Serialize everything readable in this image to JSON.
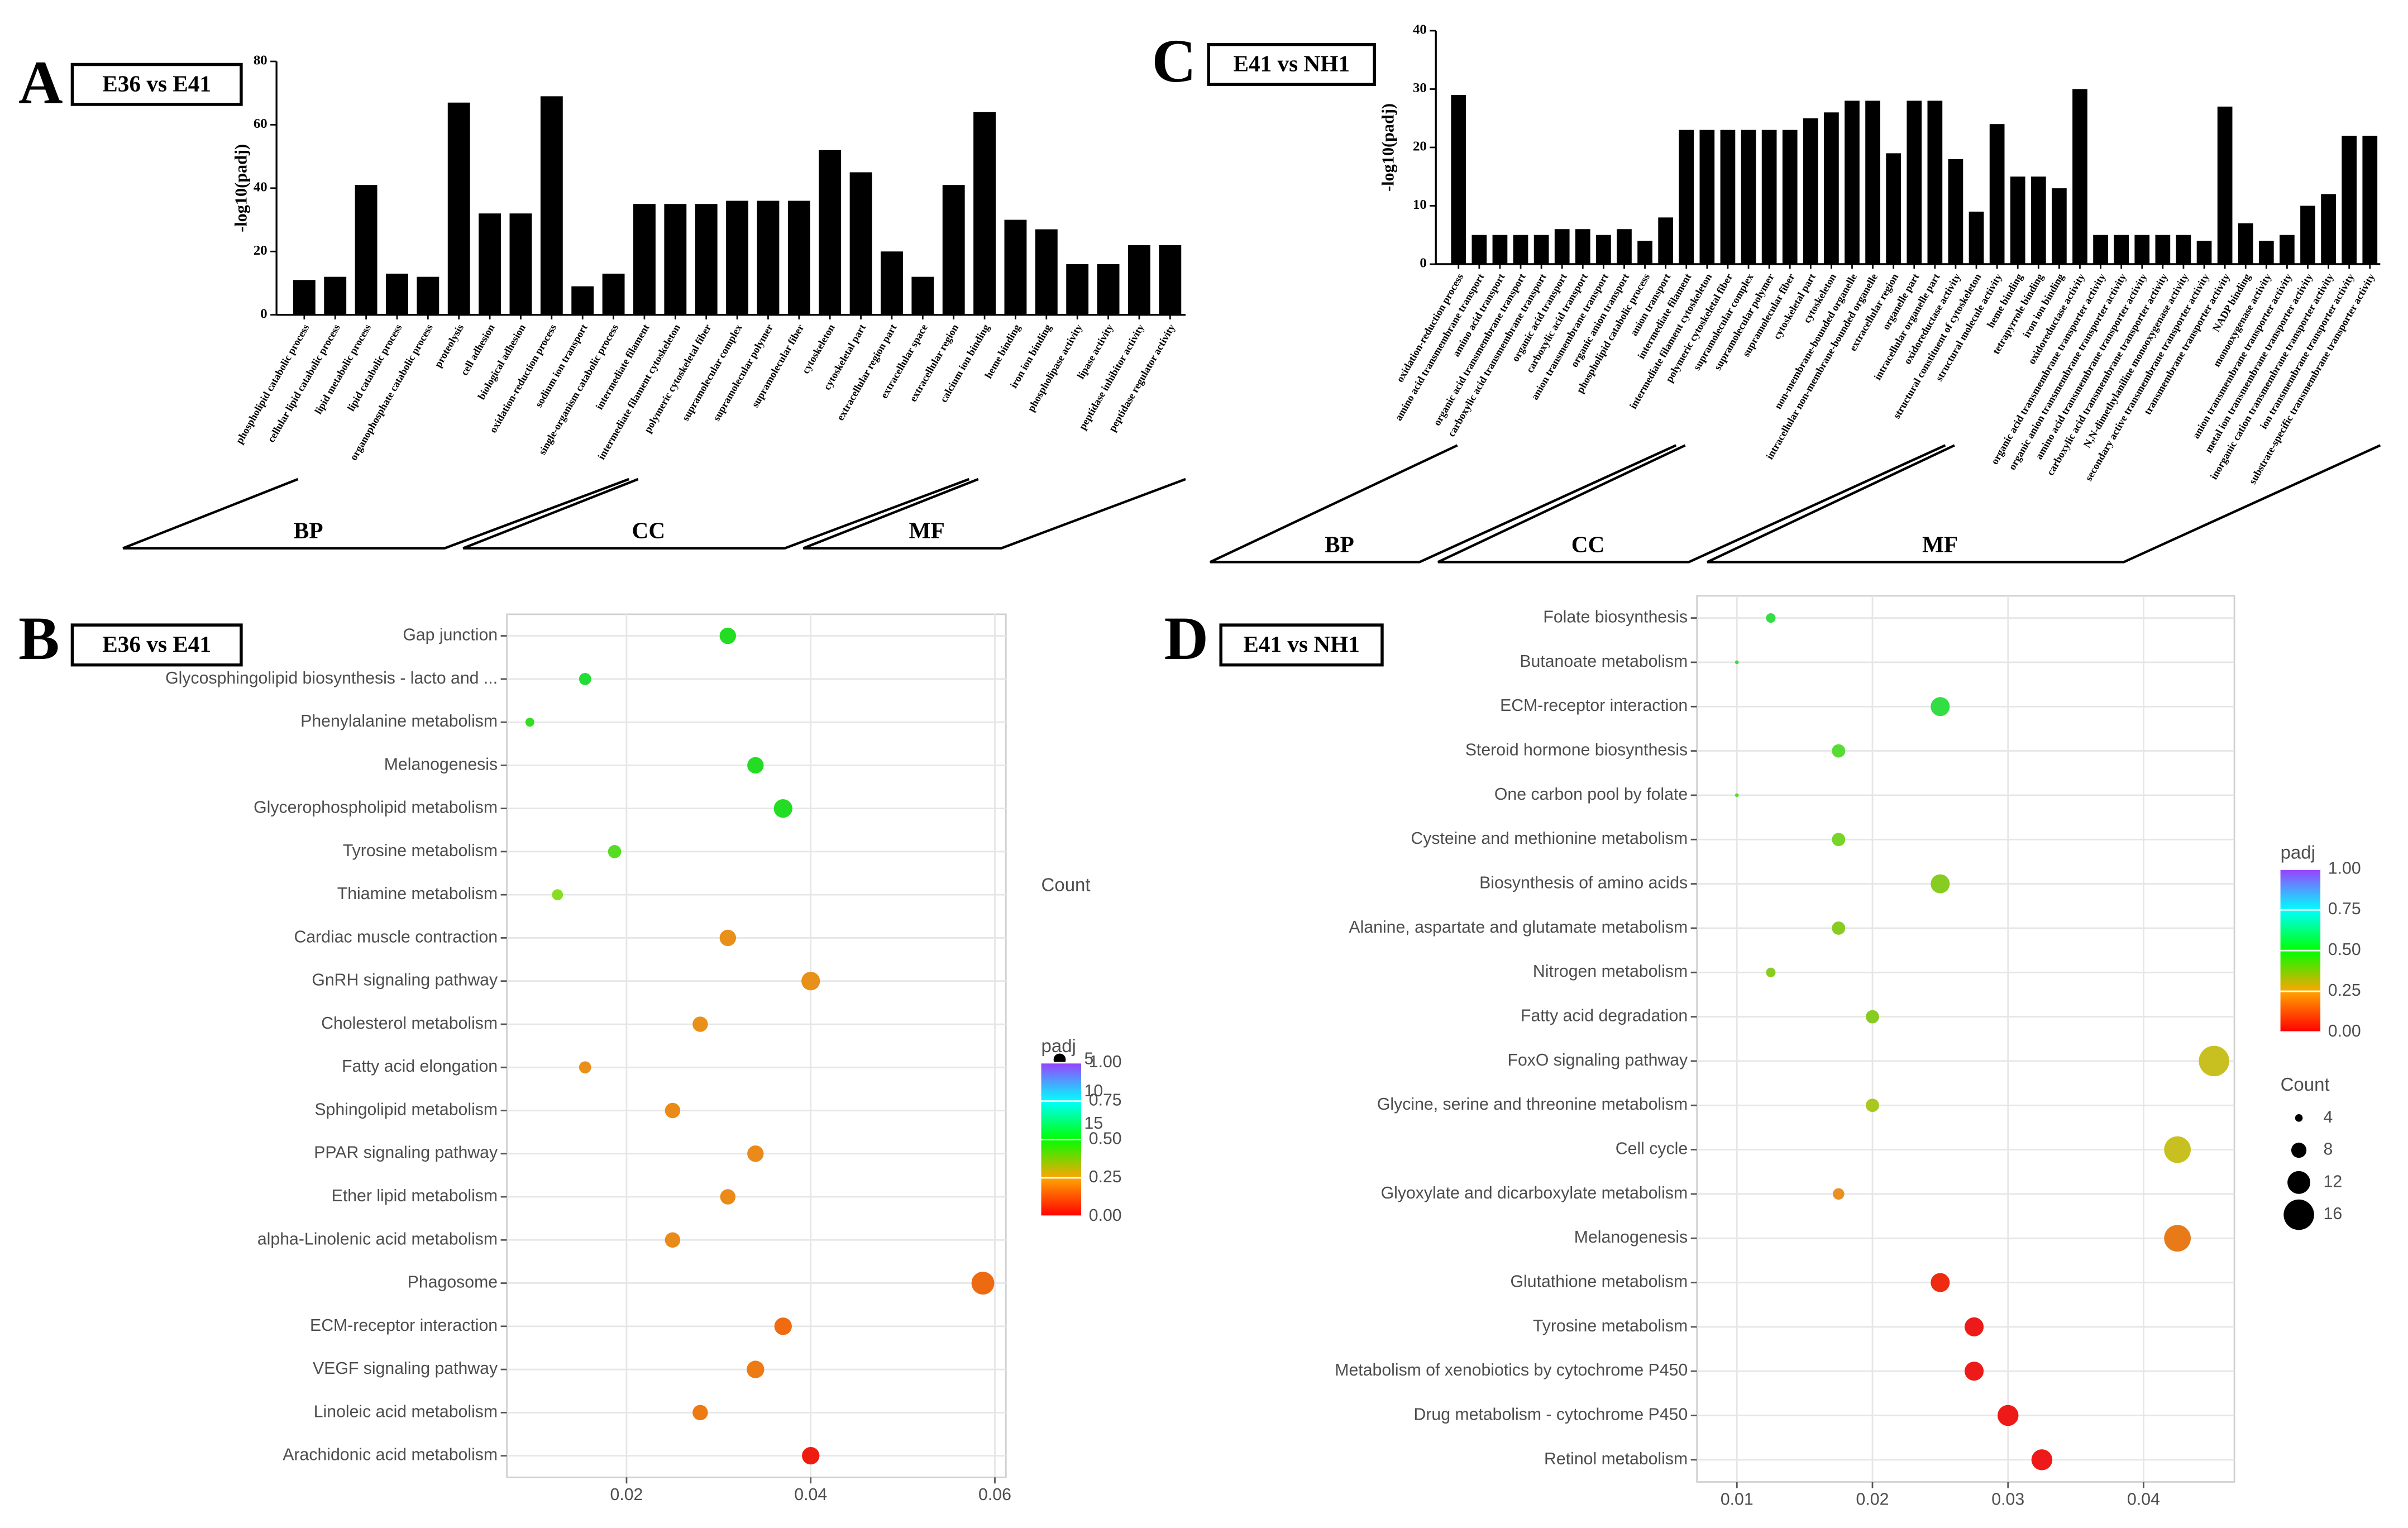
{
  "chart_data": [
    {
      "type": "bar",
      "panel": "A",
      "title": "E36 vs E41",
      "ylabel": "-log10(padj)",
      "ylim": [
        0,
        80
      ],
      "yticks": [
        0,
        20,
        40,
        60,
        80
      ],
      "color": "#000000",
      "groups": [
        {
          "name": "BP",
          "categories": [
            "phospholipid catabolic process",
            "cellular lipid catabolic process",
            "lipid metabolic process",
            "lipid catabolic process",
            "organophosphate catabolic process",
            "proteolysis",
            "cell adhesion",
            "biological adhesion",
            "oxidation-reduction process",
            "sodium ion transport",
            "single-organism catabolic process"
          ],
          "values": [
            11,
            12,
            41,
            13,
            12,
            67,
            32,
            32,
            69,
            9,
            13
          ]
        },
        {
          "name": "CC",
          "categories": [
            "intermediate filament",
            "intermediate filament cytoskeleton",
            "polymeric cytoskeletal fiber",
            "supramolecular complex",
            "supramolecular polymer",
            "supramolecular fiber",
            "cytoskeleton",
            "cytoskeletal part",
            "extracellular region part",
            "extracellular space",
            "extracellular region"
          ],
          "values": [
            35,
            35,
            35,
            36,
            36,
            36,
            52,
            45,
            20,
            12,
            41
          ]
        },
        {
          "name": "MF",
          "categories": [
            "calcium ion binding",
            "heme binding",
            "iron ion binding",
            "phospholipase activity",
            "lipase activity",
            "peptidase inhibitor activity",
            "peptidase regulator activity"
          ],
          "values": [
            64,
            30,
            27,
            16,
            16,
            22,
            22
          ]
        }
      ]
    },
    {
      "type": "bubble",
      "panel": "B",
      "title": "E36 vs E41",
      "xlim": [
        0.007,
        0.0612
      ],
      "xticks": [
        0.02,
        0.04,
        0.06
      ],
      "categories": [
        "Gap junction",
        "Glycosphingolipid biosynthesis - lacto and ...",
        "Phenylalanine metabolism",
        "Melanogenesis",
        "Glycerophospholipid metabolism",
        "Tyrosine metabolism",
        "Thiamine metabolism",
        "Cardiac muscle contraction",
        "GnRH signaling pathway",
        "Cholesterol metabolism",
        "Fatty acid elongation",
        "Sphingolipid metabolism",
        "PPAR signaling pathway",
        "Ether lipid metabolism",
        "alpha-Linolenic acid metabolism",
        "Phagosome",
        "ECM-receptor interaction",
        "VEGF signaling pathway",
        "Linoleic acid metabolism",
        "Arachidonic acid metabolism"
      ],
      "x": [
        0.031,
        0.0155,
        0.0095,
        0.034,
        0.037,
        0.0187,
        0.0125,
        0.031,
        0.04,
        0.028,
        0.0155,
        0.025,
        0.034,
        0.031,
        0.025,
        0.0587,
        0.037,
        0.034,
        0.028,
        0.04
      ],
      "sizes": [
        9,
        5,
        2,
        9,
        11,
        6,
        4,
        9,
        11,
        8,
        5,
        8,
        9,
        8,
        8,
        15,
        10,
        10,
        8,
        10
      ],
      "colors": [
        "#22dd22",
        "#22dd33",
        "#33dd22",
        "#22dd22",
        "#22dd22",
        "#55dd22",
        "#88dd22",
        "#e8901a",
        "#e8901a",
        "#e8901a",
        "#e8901a",
        "#ea8a18",
        "#ea8a18",
        "#ea8a18",
        "#ea8a18",
        "#ee6a10",
        "#f06a10",
        "#ee7a14",
        "#ee7a14",
        "#ee1c10"
      ],
      "size_legend": {
        "title": "Count",
        "values": [
          5,
          10,
          15
        ]
      },
      "colorbar": {
        "title": "padj",
        "ticks": [
          {
            "value": 0,
            "label": "0.00"
          },
          0.25,
          {
            "value": 0.5,
            "label": "0.50"
          },
          0.75,
          {
            "value": 1,
            "label": "1.00"
          }
        ],
        "colors": [
          "#ff0000",
          "#ffa500",
          "#00ff00",
          "#00ffff",
          "#9a40ff"
        ]
      }
    },
    {
      "type": "bar",
      "panel": "C",
      "title": "E41 vs NH1",
      "ylabel": "-log10(padj)",
      "ylim": [
        0,
        40
      ],
      "yticks": [
        0,
        10,
        20,
        30,
        40
      ],
      "color": "#000000",
      "groups": [
        {
          "name": "BP",
          "categories": [
            "oxidation-reduction process",
            "amino acid transmembrane transport",
            "amino acid transport",
            "organic acid transmembrane transport",
            "carboxylic acid transmembrane transport",
            "organic acid transport",
            "carboxylic acid transport",
            "anion transmembrane transport",
            "organic anion transport",
            "phospholipid catabolic process",
            "anion transport"
          ],
          "values": [
            29,
            5,
            5,
            5,
            5,
            6,
            6,
            5,
            6,
            4,
            8
          ]
        },
        {
          "name": "CC",
          "categories": [
            "intermediate filament",
            "intermediate filament cytoskeleton",
            "polymeric cytoskeletal fiber",
            "supramolecular complex",
            "supramolecular polymer",
            "supramolecular fiber",
            "cytoskeletal part",
            "cytoskeleton",
            "non-membrane-bounded organelle",
            "intracellular non-membrane-bounded organelle",
            "extracellular region",
            "organelle part",
            "intracellular organelle part"
          ],
          "values": [
            23,
            23,
            23,
            23,
            23,
            23,
            25,
            26,
            28,
            28,
            19,
            28,
            28
          ]
        },
        {
          "name": "MF",
          "categories": [
            "oxidoreductase activity",
            "structural constituent of cytoskeleton",
            "structural molecule activity",
            "heme binding",
            "tetrapyrrole binding",
            "iron ion binding",
            "oxidoreductase activity",
            "organic acid transmembrane transporter activity",
            "organic anion transmembrane transporter activity",
            "amino acid transmembrane transporter activity",
            "carboxylic acid transmembrane transporter activity",
            "N,N-dimethylaniline monooxygenase activity",
            "secondary active transmembrane transporter activity",
            "transmembrane transporter activity",
            "NADP binding",
            "monooxygenase activity",
            "anion transmembrane transporter activity",
            "metal ion transmembrane transporter activity",
            "inorganic cation transmembrane transporter activity",
            "ion transmembrane transporter activity",
            "substrate-specific transmembrane transporter activity"
          ],
          "values": [
            18,
            9,
            24,
            15,
            15,
            13,
            30,
            5,
            5,
            5,
            5,
            5,
            4,
            27,
            7,
            4,
            5,
            10,
            12,
            22,
            22
          ]
        }
      ]
    },
    {
      "type": "bubble",
      "panel": "D",
      "title": "E41 vs NH1",
      "xlim": [
        0.00705,
        0.0467
      ],
      "xticks": [
        0.01,
        0.02,
        0.03,
        0.04
      ],
      "categories": [
        "Folate biosynthesis",
        "Butanoate metabolism",
        "ECM-receptor interaction",
        "Steroid hormone biosynthesis",
        "One carbon pool by folate",
        "Cysteine and methionine metabolism",
        "Biosynthesis of amino acids",
        "Alanine, aspartate and glutamate metabolism",
        "Nitrogen metabolism",
        "Fatty acid degradation",
        "FoxO signaling pathway",
        "Glycine, serine and threonine metabolism",
        "Cell cycle",
        "Glyoxylate and dicarboxylate metabolism",
        "Melanogenesis",
        "Glutathione metabolism",
        "Tyrosine metabolism",
        "Metabolism of xenobiotics by cytochrome P450",
        "Drug metabolism - cytochrome P450",
        "Retinol metabolism"
      ],
      "x": [
        0.0125,
        0.01,
        0.025,
        0.0175,
        0.01,
        0.0175,
        0.025,
        0.0175,
        0.0125,
        0.02,
        0.0452,
        0.02,
        0.0425,
        0.0175,
        0.0425,
        0.025,
        0.0275,
        0.0275,
        0.03,
        0.0325
      ],
      "sizes": [
        5,
        2,
        10,
        7,
        2,
        7,
        10,
        7,
        5,
        7,
        16,
        7,
        14,
        6,
        14,
        10,
        10,
        10,
        11,
        11
      ],
      "colors": [
        "#33dd44",
        "#33dd44",
        "#33dd44",
        "#55dd33",
        "#55dd33",
        "#77d428",
        "#88cc22",
        "#88cc22",
        "#88cc22",
        "#88cc22",
        "#c8c020",
        "#a8c820",
        "#c8c020",
        "#e89020",
        "#e87a18",
        "#ee2a10",
        "#ee1a1a",
        "#ee1a1a",
        "#ee1a1a",
        "#ee1a1a"
      ],
      "colorbar": {
        "title": "padj",
        "ticks": [
          {
            "value": 0,
            "label": "0.00"
          },
          0.25,
          {
            "value": 0.5,
            "label": "0.50"
          },
          0.75,
          {
            "value": 1,
            "label": "1.00"
          }
        ],
        "colors": [
          "#ff0000",
          "#ffa500",
          "#00ff00",
          "#00ffff",
          "#9a40ff"
        ]
      },
      "size_legend": {
        "title": "Count",
        "values": [
          4,
          8,
          12,
          16
        ]
      }
    }
  ]
}
